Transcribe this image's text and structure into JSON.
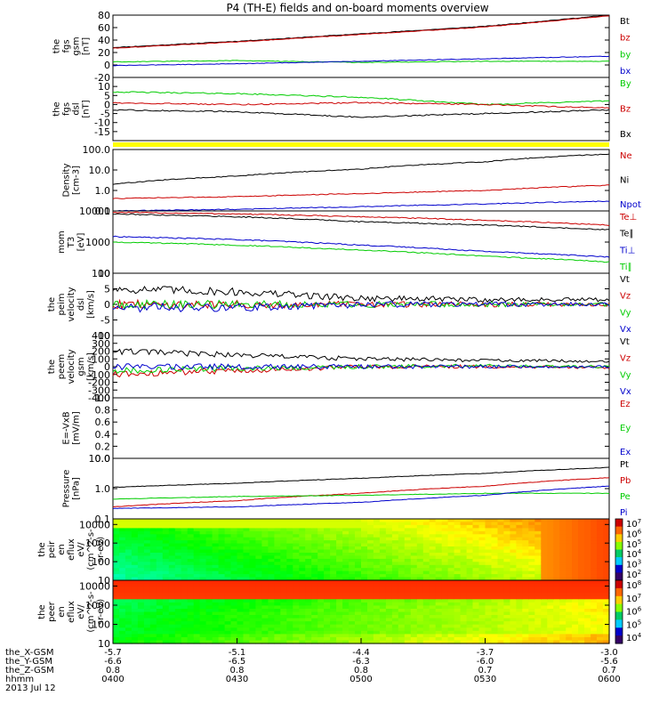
{
  "title": "P4 (TH-E) fields and on-board moments overview",
  "date": "2013 Jul 12",
  "colors": {
    "black": "#000000",
    "red": "#cc0000",
    "green": "#00cc00",
    "blue": "#0000cc",
    "yellow": "#ffff00",
    "background": "#ffffff"
  },
  "chart_data": [
    {
      "type": "line",
      "ylabel": [
        "the",
        "fgs",
        "gsm",
        "[nT]"
      ],
      "ylim": [
        -20,
        80
      ],
      "ticks": [
        "80",
        "60",
        "40",
        "20",
        "0",
        "-20"
      ],
      "series": [
        {
          "name": "Bt",
          "color": "#000000",
          "x": [
            "0400",
            "0430",
            "0500",
            "0530",
            "0600"
          ],
          "values": [
            28,
            38,
            50,
            62,
            80
          ]
        },
        {
          "name": "bz",
          "color": "#cc0000",
          "x": [
            "0400",
            "0430",
            "0500",
            "0530",
            "0600"
          ],
          "values": [
            27,
            37,
            49,
            61,
            79
          ]
        },
        {
          "name": "by",
          "color": "#00cc00",
          "x": [
            "0400",
            "0430",
            "0500",
            "0530",
            "0600"
          ],
          "values": [
            5,
            7,
            4,
            6,
            6
          ]
        },
        {
          "name": "bx",
          "color": "#0000cc",
          "x": [
            "0400",
            "0430",
            "0500",
            "0530",
            "0600"
          ],
          "values": [
            -1,
            2,
            6,
            10,
            14
          ]
        }
      ]
    },
    {
      "type": "line",
      "ylabel": [
        "the",
        "fgs",
        "dsl",
        "[nT]"
      ],
      "ylim": [
        -20,
        15
      ],
      "ticks": [
        "10",
        "5",
        "0",
        "-5",
        "-10",
        "-15"
      ],
      "series": [
        {
          "name": "By",
          "color": "#00cc00",
          "x": [
            "0400",
            "0430",
            "0500",
            "0530",
            "0600"
          ],
          "values": [
            7,
            6,
            4,
            0,
            2
          ]
        },
        {
          "name": "Bz",
          "color": "#cc0000",
          "x": [
            "0400",
            "0430",
            "0500",
            "0530",
            "0600"
          ],
          "values": [
            1,
            0,
            1,
            0,
            -2
          ]
        },
        {
          "name": "Bx",
          "color": "#000000",
          "x": [
            "0400",
            "0430",
            "0500",
            "0530",
            "0600"
          ],
          "values": [
            -3,
            -4,
            -7,
            -5,
            -3
          ]
        }
      ]
    },
    {
      "type": "line",
      "ylabel": [
        "Density",
        "[cm-3]"
      ],
      "scale": "log",
      "ylim": [
        0.1,
        100
      ],
      "ticks": [
        "100.0",
        "10.0",
        "1.0",
        "0.1"
      ],
      "series": [
        {
          "name": "Ne",
          "color": "#cc0000",
          "x": [
            "0400",
            "0430",
            "0500",
            "0530",
            "0600"
          ],
          "values": [
            0.4,
            0.5,
            0.7,
            1.0,
            1.8
          ]
        },
        {
          "name": "Ni",
          "color": "#000000",
          "x": [
            "0400",
            "0430",
            "0500",
            "0530",
            "0600"
          ],
          "values": [
            2,
            5,
            11,
            25,
            60
          ]
        },
        {
          "name": "Npot",
          "color": "#0000cc",
          "x": [
            "0400",
            "0430",
            "0500",
            "0530",
            "0600"
          ],
          "values": [
            0.1,
            0.12,
            0.16,
            0.22,
            0.3
          ]
        }
      ]
    },
    {
      "type": "line",
      "ylabel": [
        "mom",
        "T3",
        "[eV]"
      ],
      "scale": "log",
      "ylim": [
        100,
        10000
      ],
      "ticks": [
        "10000",
        "1000",
        "100"
      ],
      "series": [
        {
          "name": "Te⊥",
          "color": "#cc0000",
          "x": [
            "0400",
            "0430",
            "0500",
            "0530",
            "0600"
          ],
          "values": [
            9000,
            8000,
            6500,
            5000,
            3500
          ]
        },
        {
          "name": "Te∥",
          "color": "#000000",
          "x": [
            "0400",
            "0430",
            "0500",
            "0530",
            "0600"
          ],
          "values": [
            8000,
            6500,
            4500,
            3500,
            2500
          ]
        },
        {
          "name": "Ti⊥",
          "color": "#0000cc",
          "x": [
            "0400",
            "0430",
            "0500",
            "0530",
            "0600"
          ],
          "values": [
            1500,
            1200,
            800,
            500,
            330
          ]
        },
        {
          "name": "Ti∥",
          "color": "#00cc00",
          "x": [
            "0400",
            "0430",
            "0500",
            "0530",
            "0600"
          ],
          "values": [
            1000,
            800,
            550,
            350,
            230
          ]
        }
      ]
    },
    {
      "type": "line",
      "ylabel": [
        "the",
        "peim",
        "velocity",
        "dsl",
        "[km/s]"
      ],
      "ylim": [
        -10,
        10
      ],
      "ticks": [
        "10",
        "5",
        "0",
        "-5",
        "-10"
      ],
      "series": [
        {
          "name": "Vt",
          "color": "#000000",
          "x": [
            "0400",
            "0430",
            "0500",
            "0530",
            "0600"
          ],
          "values": [
            5,
            4,
            2,
            1.5,
            1.5
          ]
        },
        {
          "name": "Vz",
          "color": "#cc0000",
          "x": [
            "0400",
            "0430",
            "0500",
            "0530",
            "0600"
          ],
          "values": [
            0,
            0,
            0,
            0,
            0
          ]
        },
        {
          "name": "Vy",
          "color": "#00cc00",
          "x": [
            "0400",
            "0430",
            "0500",
            "0530",
            "0600"
          ],
          "values": [
            0,
            0,
            0,
            0,
            0
          ]
        },
        {
          "name": "Vx",
          "color": "#0000cc",
          "x": [
            "0400",
            "0430",
            "0500",
            "0530",
            "0600"
          ],
          "values": [
            -1,
            -1,
            0,
            0,
            0
          ]
        }
      ]
    },
    {
      "type": "line",
      "ylabel": [
        "the",
        "peem",
        "velocity",
        "gsm",
        "[km/s]"
      ],
      "ylim": [
        -400,
        400
      ],
      "ticks": [
        "400",
        "300",
        "200",
        "100",
        "0",
        "-100",
        "-200",
        "-300",
        "-400"
      ],
      "series": [
        {
          "name": "Vt",
          "color": "#000000",
          "x": [
            "0400",
            "0430",
            "0500",
            "0530",
            "0600"
          ],
          "values": [
            200,
            150,
            100,
            80,
            70
          ]
        },
        {
          "name": "Vz",
          "color": "#cc0000",
          "x": [
            "0400",
            "0430",
            "0500",
            "0530",
            "0600"
          ],
          "values": [
            -100,
            -50,
            0,
            0,
            -10
          ]
        },
        {
          "name": "Vy",
          "color": "#00cc00",
          "x": [
            "0400",
            "0430",
            "0500",
            "0530",
            "0600"
          ],
          "values": [
            -50,
            -20,
            0,
            10,
            0
          ]
        },
        {
          "name": "Vx",
          "color": "#0000cc",
          "x": [
            "0400",
            "0430",
            "0500",
            "0530",
            "0600"
          ],
          "values": [
            0,
            0,
            0,
            0,
            0
          ]
        }
      ]
    },
    {
      "type": "line",
      "ylabel": [
        "E=-VxB",
        "[mV/m]"
      ],
      "ylim": [
        0.0,
        1.0
      ],
      "ticks": [
        "1.0",
        "0.8",
        "0.6",
        "0.4",
        "0.2",
        "0.0"
      ],
      "series": [
        {
          "name": "Ez",
          "color": "#cc0000",
          "x": [],
          "values": []
        },
        {
          "name": "Ey",
          "color": "#00cc00",
          "x": [],
          "values": []
        },
        {
          "name": "Ex",
          "color": "#0000cc",
          "x": [],
          "values": []
        }
      ]
    },
    {
      "type": "line",
      "ylabel": [
        "Pressure",
        "[nPa]"
      ],
      "scale": "log",
      "ylim": [
        0.1,
        10
      ],
      "ticks": [
        "10.0",
        "1.0",
        "0.1"
      ],
      "series": [
        {
          "name": "Pt",
          "color": "#000000",
          "x": [
            "0400",
            "0430",
            "0500",
            "0530",
            "0600"
          ],
          "values": [
            1.1,
            1.5,
            2.2,
            3.2,
            5.0
          ]
        },
        {
          "name": "Pb",
          "color": "#cc0000",
          "x": [
            "0400",
            "0430",
            "0500",
            "0530",
            "0600"
          ],
          "values": [
            0.25,
            0.4,
            0.7,
            1.2,
            2.3
          ]
        },
        {
          "name": "Pe",
          "color": "#00cc00",
          "x": [
            "0400",
            "0430",
            "0500",
            "0530",
            "0600"
          ],
          "values": [
            0.45,
            0.55,
            0.6,
            0.7,
            0.7
          ]
        },
        {
          "name": "Pi",
          "color": "#0000cc",
          "x": [
            "0400",
            "0430",
            "0500",
            "0530",
            "0600"
          ],
          "values": [
            0.22,
            0.25,
            0.35,
            0.6,
            1.2
          ]
        }
      ]
    },
    {
      "type": "heatmap",
      "ylabel": [
        "the",
        "peir",
        "en",
        "eflux",
        "eV/",
        "(cm^2-s-",
        "sr-eV)"
      ],
      "scale": "log",
      "ylim": [
        10,
        20000
      ],
      "ticks": [
        "10000",
        "1000",
        "100",
        "10"
      ],
      "colorbar_ticks": [
        "10^7",
        "10^6",
        "10^5",
        "10^4",
        "10^3",
        "10^2"
      ]
    },
    {
      "type": "heatmap",
      "ylabel": [
        "the",
        "peer",
        "en",
        "eflux",
        "eV/",
        "(cm^2-s-",
        "sr-eV)"
      ],
      "scale": "log",
      "ylim": [
        10,
        20000
      ],
      "ticks": [
        "10000",
        "1000",
        "100",
        "10"
      ],
      "colorbar_ticks": [
        "10^8",
        "10^7",
        "10^6",
        "10^5",
        "10^4"
      ]
    }
  ],
  "xaxis": {
    "rows": [
      {
        "label": "the_X-GSM",
        "values": [
          "-5.7",
          "-5.1",
          "-4.4",
          "-3.7",
          "-3.0"
        ]
      },
      {
        "label": "the_Y-GSM",
        "values": [
          "-6.6",
          "-6.5",
          "-6.3",
          "-6.0",
          "-5.6"
        ]
      },
      {
        "label": "the_Z-GSM",
        "values": [
          "0.8",
          "0.8",
          "0.8",
          "0.7",
          "0.7"
        ]
      },
      {
        "label": "hhmm",
        "values": [
          "0400",
          "0430",
          "0500",
          "0530",
          "0600"
        ]
      }
    ]
  }
}
